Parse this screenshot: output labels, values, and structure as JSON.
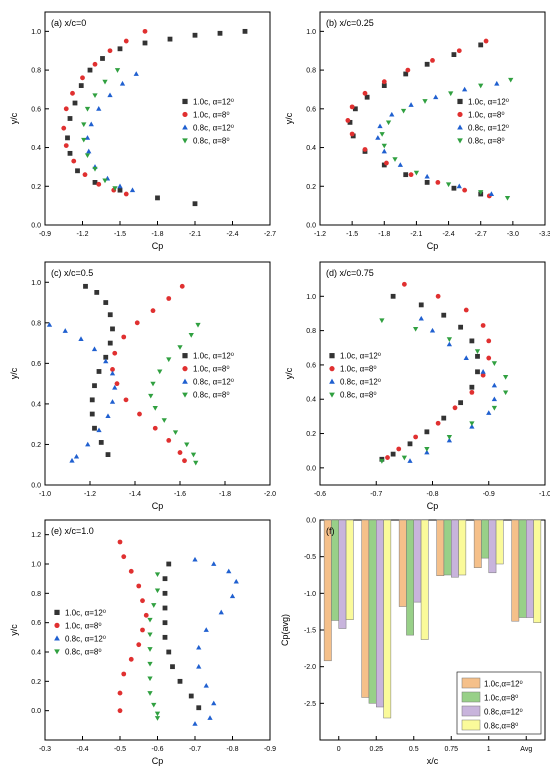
{
  "colors": {
    "s1": "#333333",
    "s2": "#e03030",
    "s3": "#2060d0",
    "s4": "#30a040",
    "bar1": "#f5c08a",
    "bar2": "#98d088",
    "bar3": "#c8b4dc",
    "bar4": "#fafa9a"
  },
  "legend_labels": [
    "1.0c, α=12⁰",
    "1.0c, α=8⁰",
    "0.8c, α=12⁰",
    "0.8c, α=8⁰"
  ],
  "chart_data": [
    {
      "id": "a",
      "type": "scatter",
      "title": "(a) x/c=0",
      "xlabel": "Cp",
      "ylabel": "y/c",
      "xlim": [
        -0.9,
        -2.7
      ],
      "ylim": [
        0,
        1.1
      ],
      "xticks": [
        -0.9,
        -1.2,
        -1.5,
        -1.8,
        -2.1,
        -2.4,
        -2.7
      ],
      "xtick_labels": [
        "-0.9",
        "-1.2",
        "-1.5",
        "-1.8",
        "-2.1",
        "-2.4",
        "-2.7"
      ],
      "yticks": [
        0,
        0.2,
        0.4,
        0.6,
        0.8,
        1.0
      ],
      "ytick_labels": [
        "0.0",
        "0.2",
        "0.4",
        "0.6",
        "0.8",
        "1.0"
      ],
      "legend_position": "right",
      "series": [
        {
          "name": "1.0c, α=12⁰",
          "x": [
            -2.5,
            -2.3,
            -2.1,
            -1.9,
            -1.7,
            -1.5,
            -1.36,
            -1.26,
            -1.19,
            -1.14,
            -1.1,
            -1.08,
            -1.1,
            -1.16,
            -1.3,
            -1.5,
            -1.8,
            -2.1
          ],
          "y": [
            1.0,
            0.99,
            0.98,
            0.96,
            0.94,
            0.91,
            0.86,
            0.8,
            0.72,
            0.63,
            0.55,
            0.45,
            0.37,
            0.28,
            0.22,
            0.18,
            0.14,
            0.11
          ]
        },
        {
          "name": "1.0c, α=8⁰",
          "x": [
            -1.7,
            -1.55,
            -1.42,
            -1.3,
            -1.2,
            -1.12,
            -1.07,
            -1.05,
            -1.07,
            -1.13,
            -1.22,
            -1.33,
            -1.45,
            -1.55
          ],
          "y": [
            1.0,
            0.95,
            0.9,
            0.83,
            0.76,
            0.68,
            0.6,
            0.5,
            0.41,
            0.33,
            0.26,
            0.21,
            0.18,
            0.16
          ]
        },
        {
          "name": "0.8c, α=12⁰",
          "x": [
            -1.63,
            -1.52,
            -1.42,
            -1.33,
            -1.27,
            -1.24,
            -1.25,
            -1.3,
            -1.4,
            -1.5,
            -1.6
          ],
          "y": [
            0.78,
            0.73,
            0.67,
            0.6,
            0.52,
            0.45,
            0.38,
            0.3,
            0.24,
            0.2,
            0.18
          ]
        },
        {
          "name": "0.8c, α=8⁰",
          "x": [
            -1.48,
            -1.38,
            -1.3,
            -1.24,
            -1.21,
            -1.21,
            -1.24,
            -1.3,
            -1.38,
            -1.46
          ],
          "y": [
            0.8,
            0.74,
            0.67,
            0.6,
            0.52,
            0.44,
            0.36,
            0.29,
            0.23,
            0.19
          ]
        }
      ]
    },
    {
      "id": "b",
      "type": "scatter",
      "title": "(b) x/c=0.25",
      "xlabel": "Cp",
      "ylabel": "y/c",
      "xlim": [
        -1.2,
        -3.3
      ],
      "ylim": [
        0,
        1.1
      ],
      "xticks": [
        -1.2,
        -1.5,
        -1.8,
        -2.1,
        -2.4,
        -2.7,
        -3.0,
        -3.3
      ],
      "xtick_labels": [
        "-1.2",
        "-1.5",
        "-1.8",
        "-2.1",
        "-2.4",
        "-2.7",
        "-3.0",
        "-3.3"
      ],
      "yticks": [
        0,
        0.2,
        0.4,
        0.6,
        0.8,
        1.0
      ],
      "ytick_labels": [
        "0.0",
        "0.2",
        "0.4",
        "0.6",
        "0.8",
        "1.0"
      ],
      "legend_position": "right",
      "series": [
        {
          "name": "1.0c, α=12⁰",
          "x": [
            -2.7,
            -2.45,
            -2.2,
            -2.0,
            -1.8,
            -1.64,
            -1.53,
            -1.48,
            -1.51,
            -1.62,
            -1.8,
            -2.0,
            -2.2,
            -2.45,
            -2.7
          ],
          "y": [
            0.93,
            0.88,
            0.83,
            0.78,
            0.72,
            0.66,
            0.6,
            0.53,
            0.46,
            0.38,
            0.31,
            0.26,
            0.22,
            0.19,
            0.16
          ]
        },
        {
          "name": "1.0c, α=8⁰",
          "x": [
            -2.75,
            -2.5,
            -2.25,
            -2.02,
            -1.8,
            -1.62,
            -1.5,
            -1.46,
            -1.5,
            -1.62,
            -1.82,
            -2.05,
            -2.3,
            -2.55,
            -2.78
          ],
          "y": [
            0.95,
            0.9,
            0.85,
            0.8,
            0.74,
            0.68,
            0.61,
            0.54,
            0.47,
            0.39,
            0.32,
            0.26,
            0.22,
            0.18,
            0.15
          ]
        },
        {
          "name": "0.8c, α=12⁰",
          "x": [
            -2.85,
            -2.55,
            -2.28,
            -2.05,
            -1.87,
            -1.76,
            -1.74,
            -1.8,
            -1.95,
            -2.2,
            -2.5,
            -2.8
          ],
          "y": [
            0.73,
            0.7,
            0.66,
            0.62,
            0.57,
            0.51,
            0.45,
            0.38,
            0.31,
            0.25,
            0.2,
            0.16
          ]
        },
        {
          "name": "0.8c, α=8⁰",
          "x": [
            -2.98,
            -2.7,
            -2.42,
            -2.18,
            -1.98,
            -1.84,
            -1.78,
            -1.8,
            -1.9,
            -2.1,
            -2.4,
            -2.7,
            -2.95
          ],
          "y": [
            0.75,
            0.72,
            0.68,
            0.64,
            0.59,
            0.53,
            0.47,
            0.41,
            0.34,
            0.27,
            0.21,
            0.17,
            0.14
          ]
        }
      ]
    },
    {
      "id": "c",
      "type": "scatter",
      "title": "(c) x/c=0.5",
      "xlabel": "Cp",
      "ylabel": "y/c",
      "xlim": [
        -1.0,
        -2.0
      ],
      "ylim": [
        0,
        1.1
      ],
      "xticks": [
        -1.0,
        -1.2,
        -1.4,
        -1.6,
        -1.8,
        -2.0
      ],
      "xtick_labels": [
        "-1.0",
        "-1.2",
        "-1.4",
        "-1.6",
        "-1.8",
        "-2.0"
      ],
      "yticks": [
        0,
        0.2,
        0.4,
        0.6,
        0.8,
        1.0
      ],
      "ytick_labels": [
        "0.0",
        "0.2",
        "0.4",
        "0.6",
        "0.8",
        "1.0"
      ],
      "legend_position": "right",
      "series": [
        {
          "name": "1.0c, α=12⁰",
          "x": [
            -1.18,
            -1.23,
            -1.27,
            -1.29,
            -1.3,
            -1.29,
            -1.27,
            -1.24,
            -1.22,
            -1.21,
            -1.21,
            -1.22,
            -1.25,
            -1.28
          ],
          "y": [
            0.98,
            0.95,
            0.9,
            0.84,
            0.77,
            0.7,
            0.63,
            0.56,
            0.49,
            0.42,
            0.35,
            0.28,
            0.21,
            0.15
          ]
        },
        {
          "name": "1.0c, α=8⁰",
          "x": [
            -1.61,
            -1.55,
            -1.48,
            -1.41,
            -1.35,
            -1.31,
            -1.3,
            -1.32,
            -1.36,
            -1.42,
            -1.49,
            -1.55,
            -1.6,
            -1.62
          ],
          "y": [
            0.98,
            0.92,
            0.86,
            0.8,
            0.73,
            0.65,
            0.57,
            0.5,
            0.42,
            0.35,
            0.28,
            0.22,
            0.16,
            0.12
          ]
        },
        {
          "name": "0.8c, α=12⁰",
          "x": [
            -1.02,
            -1.09,
            -1.16,
            -1.22,
            -1.27,
            -1.3,
            -1.31,
            -1.3,
            -1.28,
            -1.24,
            -1.19,
            -1.14,
            -1.12
          ],
          "y": [
            0.79,
            0.76,
            0.72,
            0.67,
            0.61,
            0.55,
            0.48,
            0.41,
            0.34,
            0.27,
            0.2,
            0.14,
            0.12
          ]
        },
        {
          "name": "0.8c, α=8⁰",
          "x": [
            -1.68,
            -1.65,
            -1.6,
            -1.55,
            -1.51,
            -1.48,
            -1.47,
            -1.49,
            -1.53,
            -1.58,
            -1.63,
            -1.66,
            -1.67
          ],
          "y": [
            0.79,
            0.74,
            0.68,
            0.62,
            0.56,
            0.5,
            0.44,
            0.38,
            0.32,
            0.26,
            0.2,
            0.15,
            0.11
          ]
        }
      ]
    },
    {
      "id": "d",
      "type": "scatter",
      "title": "(d) x/c=0.75",
      "xlabel": "Cp",
      "ylabel": "y/c",
      "xlim": [
        -0.6,
        -1.0
      ],
      "ylim": [
        -0.1,
        1.2
      ],
      "xticks": [
        -0.6,
        -0.7,
        -0.8,
        -0.9,
        -1.0
      ],
      "xtick_labels": [
        "-0.6",
        "-0.7",
        "-0.8",
        "-0.9",
        "-1.0"
      ],
      "yticks": [
        0,
        0.2,
        0.4,
        0.6,
        0.8,
        1.0
      ],
      "ytick_labels": [
        "0.0",
        "0.2",
        "0.4",
        "0.6",
        "0.8",
        "1.0"
      ],
      "legend_position": "left",
      "series": [
        {
          "name": "1.0c, α=12⁰",
          "x": [
            -0.73,
            -0.78,
            -0.82,
            -0.85,
            -0.87,
            -0.88,
            -0.88,
            -0.87,
            -0.85,
            -0.82,
            -0.79,
            -0.76,
            -0.73,
            -0.71
          ],
          "y": [
            1.0,
            0.95,
            0.89,
            0.82,
            0.74,
            0.65,
            0.56,
            0.47,
            0.38,
            0.29,
            0.21,
            0.14,
            0.08,
            0.05
          ]
        },
        {
          "name": "1.0c, α=8⁰",
          "x": [
            -0.75,
            -0.81,
            -0.86,
            -0.89,
            -0.9,
            -0.9,
            -0.89,
            -0.87,
            -0.84,
            -0.81,
            -0.77,
            -0.74,
            -0.72
          ],
          "y": [
            1.07,
            1.0,
            0.92,
            0.83,
            0.74,
            0.64,
            0.54,
            0.44,
            0.35,
            0.26,
            0.18,
            0.11,
            0.06
          ]
        },
        {
          "name": "0.8c, α=12⁰",
          "x": [
            -0.78,
            -0.8,
            -0.83,
            -0.86,
            -0.89,
            -0.91,
            -0.91,
            -0.9,
            -0.87,
            -0.83,
            -0.79,
            -0.76
          ],
          "y": [
            0.87,
            0.8,
            0.72,
            0.64,
            0.56,
            0.48,
            0.4,
            0.32,
            0.24,
            0.16,
            0.09,
            0.04
          ]
        },
        {
          "name": "0.8c, α=8⁰",
          "x": [
            -0.71,
            -0.77,
            -0.83,
            -0.88,
            -0.91,
            -0.93,
            -0.93,
            -0.91,
            -0.87,
            -0.83,
            -0.79,
            -0.75,
            -0.71
          ],
          "y": [
            0.86,
            0.81,
            0.75,
            0.68,
            0.61,
            0.53,
            0.44,
            0.35,
            0.26,
            0.18,
            0.11,
            0.06,
            0.04
          ]
        }
      ]
    },
    {
      "id": "e",
      "type": "scatter",
      "title": "(e) x/c=1.0",
      "xlabel": "Cp",
      "ylabel": "y/c",
      "xlim": [
        -0.3,
        -0.9
      ],
      "ylim": [
        -0.2,
        1.3
      ],
      "xticks": [
        -0.3,
        -0.4,
        -0.5,
        -0.6,
        -0.7,
        -0.8,
        -0.9
      ],
      "xtick_labels": [
        "-0.3",
        "-0.4",
        "-0.5",
        "-0.6",
        "-0.7",
        "-0.8",
        "-0.9"
      ],
      "yticks": [
        0,
        0.2,
        0.4,
        0.6,
        0.8,
        1.0,
        1.2
      ],
      "ytick_labels": [
        "0.0",
        "0.2",
        "0.4",
        "0.6",
        "0.8",
        "1.0",
        "1.2"
      ],
      "legend_position": "left",
      "series": [
        {
          "name": "1.0c, α=12⁰",
          "x": [
            -0.63,
            -0.62,
            -0.62,
            -0.62,
            -0.62,
            -0.62,
            -0.63,
            -0.64,
            -0.66,
            -0.69,
            -0.71
          ],
          "y": [
            1.0,
            0.9,
            0.8,
            0.7,
            0.6,
            0.5,
            0.4,
            0.3,
            0.2,
            0.1,
            0.02
          ]
        },
        {
          "name": "1.0c, α=8⁰",
          "x": [
            -0.5,
            -0.51,
            -0.53,
            -0.55,
            -0.56,
            -0.57,
            -0.56,
            -0.55,
            -0.53,
            -0.51,
            -0.5,
            -0.5
          ],
          "y": [
            1.15,
            1.05,
            0.95,
            0.85,
            0.75,
            0.65,
            0.55,
            0.45,
            0.35,
            0.25,
            0.12,
            0.0
          ]
        },
        {
          "name": "0.8c, α=12⁰",
          "x": [
            -0.7,
            -0.75,
            -0.79,
            -0.81,
            -0.8,
            -0.77,
            -0.73,
            -0.71,
            -0.71,
            -0.73,
            -0.75,
            -0.74,
            -0.7
          ],
          "y": [
            1.03,
            1.0,
            0.95,
            0.88,
            0.78,
            0.67,
            0.55,
            0.43,
            0.3,
            0.17,
            0.05,
            -0.05,
            -0.09
          ]
        },
        {
          "name": "0.8c, α=8⁰",
          "x": [
            -0.6,
            -0.6,
            -0.59,
            -0.58,
            -0.58,
            -0.58,
            -0.58,
            -0.58,
            -0.58,
            -0.59,
            -0.6,
            -0.6
          ],
          "y": [
            0.93,
            0.82,
            0.72,
            0.62,
            0.52,
            0.42,
            0.32,
            0.22,
            0.12,
            0.04,
            -0.02,
            -0.05
          ]
        }
      ]
    },
    {
      "id": "f",
      "type": "bar",
      "title": "(f)",
      "xlabel": "x/c",
      "ylabel": "Cp(avg)",
      "categories": [
        "0",
        "0.25",
        "0.5",
        "0.75",
        "1",
        "Avg"
      ],
      "ylim": [
        0,
        -3.0
      ],
      "yticks": [
        0,
        -0.5,
        -1.0,
        -1.5,
        -2.0,
        -2.5
      ],
      "ytick_labels": [
        "0.0",
        "-0.5",
        "-1.0",
        "-1.5",
        "-2.0",
        "-2.5"
      ],
      "legend_position": "bottom-right",
      "series": [
        {
          "name": "1.0c,α=12⁰",
          "values": [
            -1.92,
            -2.42,
            -1.18,
            -0.76,
            -0.65,
            -1.38
          ]
        },
        {
          "name": "1.0c,α=8⁰",
          "values": [
            -1.37,
            -2.5,
            -1.57,
            -0.75,
            -0.52,
            -1.33
          ]
        },
        {
          "name": "0.8c,α=12⁰",
          "values": [
            -1.48,
            -2.55,
            -1.12,
            -0.78,
            -0.72,
            -1.33
          ]
        },
        {
          "name": "0.8c,α=8⁰",
          "values": [
            -1.36,
            -2.7,
            -1.63,
            -0.75,
            -0.6,
            -1.4
          ]
        }
      ]
    }
  ]
}
